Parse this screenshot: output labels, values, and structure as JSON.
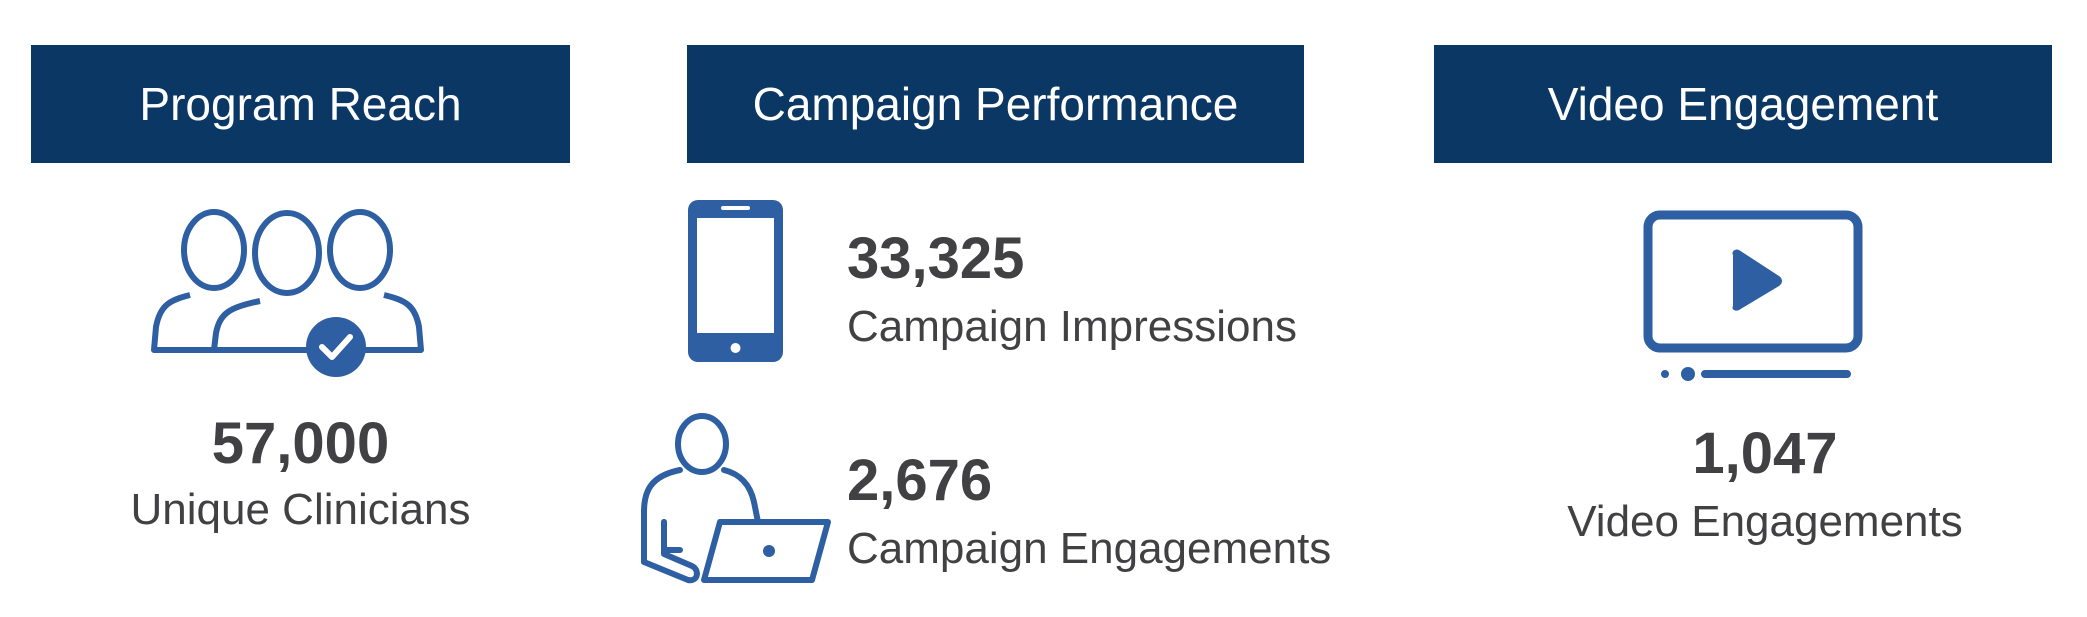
{
  "colors": {
    "header_bg": "#0a3764",
    "icon": "#2e5fa3",
    "text": "#414042"
  },
  "panels": [
    {
      "title": "Program Reach",
      "icon": "group-check-icon",
      "stat": {
        "value": "57,000",
        "label": "Unique Clinicians"
      }
    },
    {
      "title": "Campaign Performance",
      "stats": [
        {
          "icon": "smartphone-icon",
          "value": "33,325",
          "label": "Campaign Impressions"
        },
        {
          "icon": "person-laptop-icon",
          "value": "2,676",
          "label": "Campaign Engagements"
        }
      ]
    },
    {
      "title": "Video Engagement",
      "icon": "video-player-icon",
      "stat": {
        "value": "1,047",
        "label": "Video Engagements"
      }
    }
  ]
}
